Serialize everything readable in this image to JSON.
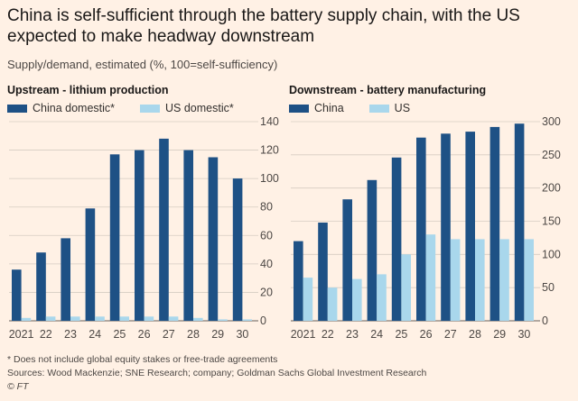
{
  "title": "China is self-sufficient through the battery supply chain, with the US expected to make headway downstream",
  "subtitle": "Supply/demand, estimated (%, 100=self-sufficiency)",
  "colors": {
    "primary": "#1e5185",
    "secondary": "#a9d7ec",
    "background": "#fff1e5",
    "grid": "#d6ccc2"
  },
  "chart_data": [
    {
      "type": "bar",
      "title": "Upstream - lithium production",
      "categories": [
        "2021",
        "22",
        "23",
        "24",
        "25",
        "26",
        "27",
        "28",
        "29",
        "30"
      ],
      "series": [
        {
          "name": "China domestic*",
          "values": [
            36,
            48,
            58,
            79,
            117,
            120,
            128,
            120,
            115,
            100
          ]
        },
        {
          "name": "US domestic*",
          "values": [
            2,
            3,
            3,
            3,
            3,
            3,
            3,
            2,
            1,
            1
          ]
        }
      ],
      "ylim": [
        0,
        140
      ],
      "yticks": [
        "0",
        "20",
        "40",
        "60",
        "80",
        "100",
        "120",
        "140"
      ],
      "axis_side": "right"
    },
    {
      "type": "bar",
      "title": "Downstream - battery manufacturing",
      "categories": [
        "2021",
        "22",
        "23",
        "24",
        "25",
        "26",
        "27",
        "28",
        "29",
        "30"
      ],
      "series": [
        {
          "name": "China",
          "values": [
            120,
            148,
            183,
            212,
            246,
            276,
            282,
            285,
            292,
            297
          ]
        },
        {
          "name": "US",
          "values": [
            65,
            50,
            63,
            70,
            100,
            130,
            123,
            123,
            123,
            123
          ]
        }
      ],
      "ylim": [
        0,
        300
      ],
      "yticks": [
        "0",
        "50",
        "100",
        "150",
        "200",
        "250",
        "300"
      ],
      "axis_side": "right"
    }
  ],
  "footnotes": {
    "note": "* Does not include global equity stakes or free-trade agreements",
    "sources": "Sources: Wood Mackenzie; SNE Research; company; Goldman Sachs Global Investment Research",
    "credit": "© FT"
  }
}
